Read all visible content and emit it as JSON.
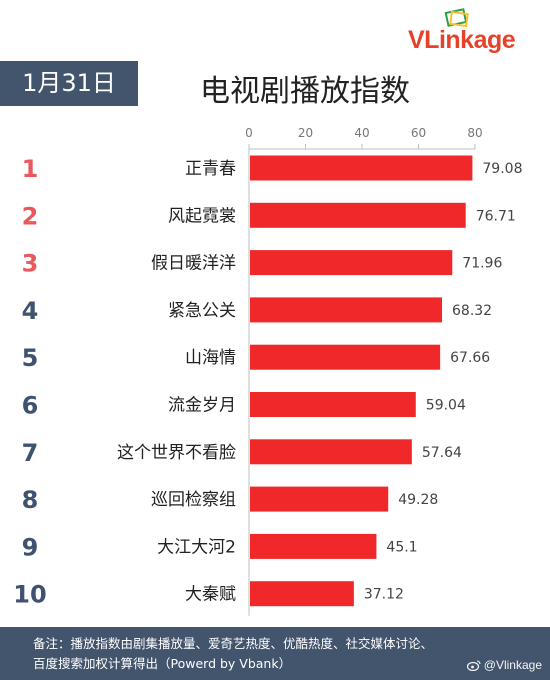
{
  "brand": {
    "prefix": "VL",
    "suffix": "inkage"
  },
  "date_label": "1月31日",
  "chart_data": {
    "type": "bar",
    "orientation": "horizontal",
    "title": "电视剧播放指数",
    "ranks": [
      "1",
      "2",
      "3",
      "4",
      "5",
      "6",
      "7",
      "8",
      "9",
      "10"
    ],
    "categories": [
      "正青春",
      "风起霓裳",
      "假日暖洋洋",
      "紧急公关",
      "山海情",
      "流金岁月",
      "这个世界不看脸",
      "巡回检察组",
      "大江大河2",
      "大秦赋"
    ],
    "values": [
      79.08,
      76.71,
      71.96,
      68.32,
      67.66,
      59.04,
      57.64,
      49.28,
      45.1,
      37.12
    ],
    "value_labels": [
      "79.08",
      "76.71",
      "71.96",
      "68.32",
      "67.66",
      "59.04",
      "57.64",
      "49.28",
      "45.1",
      "37.12"
    ],
    "xlim": [
      0,
      80
    ],
    "xticks": [
      0,
      20,
      40,
      60,
      80
    ],
    "grid": false,
    "legend": "none",
    "colors": {
      "bar": "#f0282a",
      "rank_top3": "#e8585d",
      "rank_other": "#3f5270"
    }
  },
  "footer": {
    "line1": "备注：播放指数由剧集播放量、爱奇艺热度、优酷热度、社交媒体讨论、",
    "line2": "百度搜索加权计算得出（Powerd by Vbank）",
    "watermark": "@Vlinkage"
  }
}
